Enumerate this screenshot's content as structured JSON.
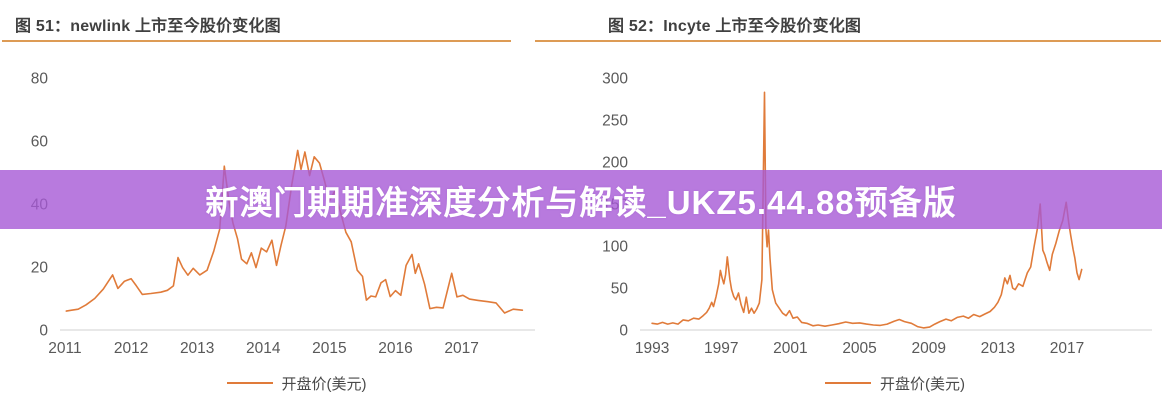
{
  "banner": {
    "text": "新澳门期期准深度分析与解读_UKZ5.44.88预备版",
    "background_color": "rgba(166,89,214,0.8)",
    "text_color": "#ffffff"
  },
  "style": {
    "line_color": "#E07B3A",
    "title_rule_color": "#DD9B55",
    "axis_line_color": "#D9D9D9",
    "tick_label_color": "#595959",
    "title_color": "#404040",
    "legend_text_color": "#4a4a4a"
  },
  "chart_data": [
    {
      "type": "line",
      "title": "图 51：newlink 上市至今股价变化图",
      "legend_label": "开盘价(美元)",
      "legend_position": "bottom",
      "grid": false,
      "xlabel": "",
      "ylabel": "",
      "ylim": [
        0,
        80
      ],
      "y_ticks": [
        0,
        20,
        40,
        60,
        80
      ],
      "x_ticks": [
        2011,
        2012,
        2013,
        2014,
        2015,
        2016,
        2017
      ],
      "xlim": [
        2010.97,
        2018.08
      ],
      "series": [
        {
          "name": "开盘价(美元)",
          "points": [
            [
              2011.02,
              6
            ],
            [
              2011.1,
              6.3
            ],
            [
              2011.2,
              6.6
            ],
            [
              2011.32,
              8
            ],
            [
              2011.45,
              10
            ],
            [
              2011.58,
              13
            ],
            [
              2011.72,
              17.5
            ],
            [
              2011.8,
              13.2
            ],
            [
              2011.9,
              15.5
            ],
            [
              2012.0,
              16.3
            ],
            [
              2012.08,
              14
            ],
            [
              2012.17,
              11.3
            ],
            [
              2012.3,
              11.6
            ],
            [
              2012.45,
              12
            ],
            [
              2012.55,
              12.6
            ],
            [
              2012.64,
              14
            ],
            [
              2012.71,
              23
            ],
            [
              2012.78,
              19.8
            ],
            [
              2012.86,
              17.4
            ],
            [
              2012.94,
              19.6
            ],
            [
              2013.04,
              17.5
            ],
            [
              2013.15,
              19
            ],
            [
              2013.25,
              25
            ],
            [
              2013.34,
              32
            ],
            [
              2013.41,
              52
            ],
            [
              2013.48,
              41
            ],
            [
              2013.54,
              34
            ],
            [
              2013.61,
              29
            ],
            [
              2013.67,
              22.5
            ],
            [
              2013.75,
              21
            ],
            [
              2013.82,
              24.5
            ],
            [
              2013.89,
              19.8
            ],
            [
              2013.97,
              26
            ],
            [
              2014.05,
              24.8
            ],
            [
              2014.13,
              28.5
            ],
            [
              2014.2,
              20.5
            ],
            [
              2014.27,
              27
            ],
            [
              2014.34,
              33
            ],
            [
              2014.43,
              46
            ],
            [
              2014.52,
              57
            ],
            [
              2014.57,
              51
            ],
            [
              2014.63,
              56.5
            ],
            [
              2014.7,
              49
            ],
            [
              2014.77,
              55
            ],
            [
              2014.85,
              53
            ],
            [
              2014.93,
              47
            ],
            [
              2015.0,
              41
            ],
            [
              2015.08,
              44
            ],
            [
              2015.16,
              38
            ],
            [
              2015.25,
              31
            ],
            [
              2015.33,
              28
            ],
            [
              2015.42,
              19
            ],
            [
              2015.5,
              17
            ],
            [
              2015.56,
              9.5
            ],
            [
              2015.63,
              10.8
            ],
            [
              2015.7,
              10.5
            ],
            [
              2015.78,
              15
            ],
            [
              2015.85,
              16
            ],
            [
              2015.92,
              10.6
            ],
            [
              2016.0,
              12.5
            ],
            [
              2016.08,
              11
            ],
            [
              2016.16,
              20.5
            ],
            [
              2016.25,
              24
            ],
            [
              2016.3,
              18
            ],
            [
              2016.35,
              21
            ],
            [
              2016.44,
              14.5
            ],
            [
              2016.52,
              6.8
            ],
            [
              2016.62,
              7.2
            ],
            [
              2016.72,
              7
            ],
            [
              2016.85,
              18
            ],
            [
              2016.93,
              10.5
            ],
            [
              2017.02,
              11
            ],
            [
              2017.12,
              9.8
            ],
            [
              2017.25,
              9.4
            ],
            [
              2017.4,
              9
            ],
            [
              2017.52,
              8.6
            ],
            [
              2017.65,
              5.4
            ],
            [
              2017.78,
              6.6
            ],
            [
              2017.92,
              6.3
            ]
          ]
        }
      ]
    },
    {
      "type": "line",
      "title": "图 52：Incyte 上市至今股价变化图",
      "legend_label": "开盘价(美元)",
      "legend_position": "bottom",
      "grid": false,
      "xlabel": "",
      "ylabel": "",
      "ylim": [
        0,
        300
      ],
      "y_ticks": [
        0,
        50,
        100,
        150,
        200,
        250,
        300
      ],
      "x_ticks": [
        1993,
        1997,
        2001,
        2005,
        2009,
        2013,
        2017
      ],
      "xlim": [
        1992.3,
        2021.8
      ],
      "series": [
        {
          "name": "开盘价(美元)",
          "points": [
            [
              1993.0,
              8
            ],
            [
              1993.3,
              7
            ],
            [
              1993.6,
              9
            ],
            [
              1993.9,
              7
            ],
            [
              1994.2,
              8.5
            ],
            [
              1994.5,
              7
            ],
            [
              1994.8,
              12
            ],
            [
              1995.1,
              11
            ],
            [
              1995.4,
              14
            ],
            [
              1995.7,
              13
            ],
            [
              1995.95,
              17
            ],
            [
              1996.15,
              21
            ],
            [
              1996.3,
              26
            ],
            [
              1996.45,
              33
            ],
            [
              1996.55,
              28
            ],
            [
              1996.7,
              40
            ],
            [
              1996.85,
              55
            ],
            [
              1996.95,
              71
            ],
            [
              1997.05,
              62
            ],
            [
              1997.15,
              55
            ],
            [
              1997.25,
              66
            ],
            [
              1997.35,
              87
            ],
            [
              1997.5,
              60
            ],
            [
              1997.6,
              48
            ],
            [
              1997.72,
              40
            ],
            [
              1997.85,
              36
            ],
            [
              1998.0,
              44
            ],
            [
              1998.15,
              30
            ],
            [
              1998.3,
              21
            ],
            [
              1998.45,
              39
            ],
            [
              1998.6,
              20
            ],
            [
              1998.75,
              26
            ],
            [
              1998.9,
              20
            ],
            [
              1999.05,
              25
            ],
            [
              1999.2,
              32
            ],
            [
              1999.35,
              60
            ],
            [
              1999.5,
              283
            ],
            [
              1999.58,
              120
            ],
            [
              1999.65,
              99
            ],
            [
              1999.73,
              119
            ],
            [
              1999.82,
              85
            ],
            [
              1999.95,
              48
            ],
            [
              2000.15,
              32
            ],
            [
              2000.35,
              26
            ],
            [
              2000.55,
              20
            ],
            [
              2000.75,
              17
            ],
            [
              2000.95,
              23
            ],
            [
              2001.15,
              14
            ],
            [
              2001.4,
              15.5
            ],
            [
              2001.65,
              9
            ],
            [
              2001.95,
              8
            ],
            [
              2002.3,
              5
            ],
            [
              2002.6,
              6
            ],
            [
              2003.0,
              4.5
            ],
            [
              2003.4,
              6
            ],
            [
              2003.8,
              7.5
            ],
            [
              2004.2,
              9.5
            ],
            [
              2004.6,
              8
            ],
            [
              2005.0,
              8.5
            ],
            [
              2005.4,
              7
            ],
            [
              2005.8,
              6
            ],
            [
              2006.2,
              5.5
            ],
            [
              2006.6,
              7
            ],
            [
              2007.0,
              10.5
            ],
            [
              2007.3,
              12.5
            ],
            [
              2007.6,
              10
            ],
            [
              2008.0,
              8
            ],
            [
              2008.35,
              4
            ],
            [
              2008.7,
              2.5
            ],
            [
              2009.05,
              3.5
            ],
            [
              2009.35,
              7
            ],
            [
              2009.65,
              10
            ],
            [
              2010.0,
              13
            ],
            [
              2010.3,
              11
            ],
            [
              2010.65,
              15
            ],
            [
              2011.0,
              16.5
            ],
            [
              2011.3,
              14
            ],
            [
              2011.6,
              18.5
            ],
            [
              2011.95,
              16
            ],
            [
              2012.25,
              19
            ],
            [
              2012.55,
              22
            ],
            [
              2012.8,
              27
            ],
            [
              2013.0,
              33
            ],
            [
              2013.2,
              42
            ],
            [
              2013.4,
              62
            ],
            [
              2013.55,
              55
            ],
            [
              2013.7,
              65
            ],
            [
              2013.85,
              50
            ],
            [
              2014.0,
              48
            ],
            [
              2014.2,
              55
            ],
            [
              2014.45,
              52
            ],
            [
              2014.7,
              68
            ],
            [
              2014.9,
              75
            ],
            [
              2015.1,
              100
            ],
            [
              2015.3,
              122
            ],
            [
              2015.45,
              150
            ],
            [
              2015.6,
              95
            ],
            [
              2015.72,
              89
            ],
            [
              2015.85,
              80
            ],
            [
              2016.0,
              71
            ],
            [
              2016.15,
              90
            ],
            [
              2016.35,
              103
            ],
            [
              2016.55,
              118
            ],
            [
              2016.75,
              130
            ],
            [
              2016.95,
              152
            ],
            [
              2017.1,
              128
            ],
            [
              2017.22,
              112
            ],
            [
              2017.35,
              96
            ],
            [
              2017.45,
              86
            ],
            [
              2017.58,
              68
            ],
            [
              2017.7,
              60
            ],
            [
              2017.85,
              72
            ]
          ]
        }
      ]
    }
  ]
}
